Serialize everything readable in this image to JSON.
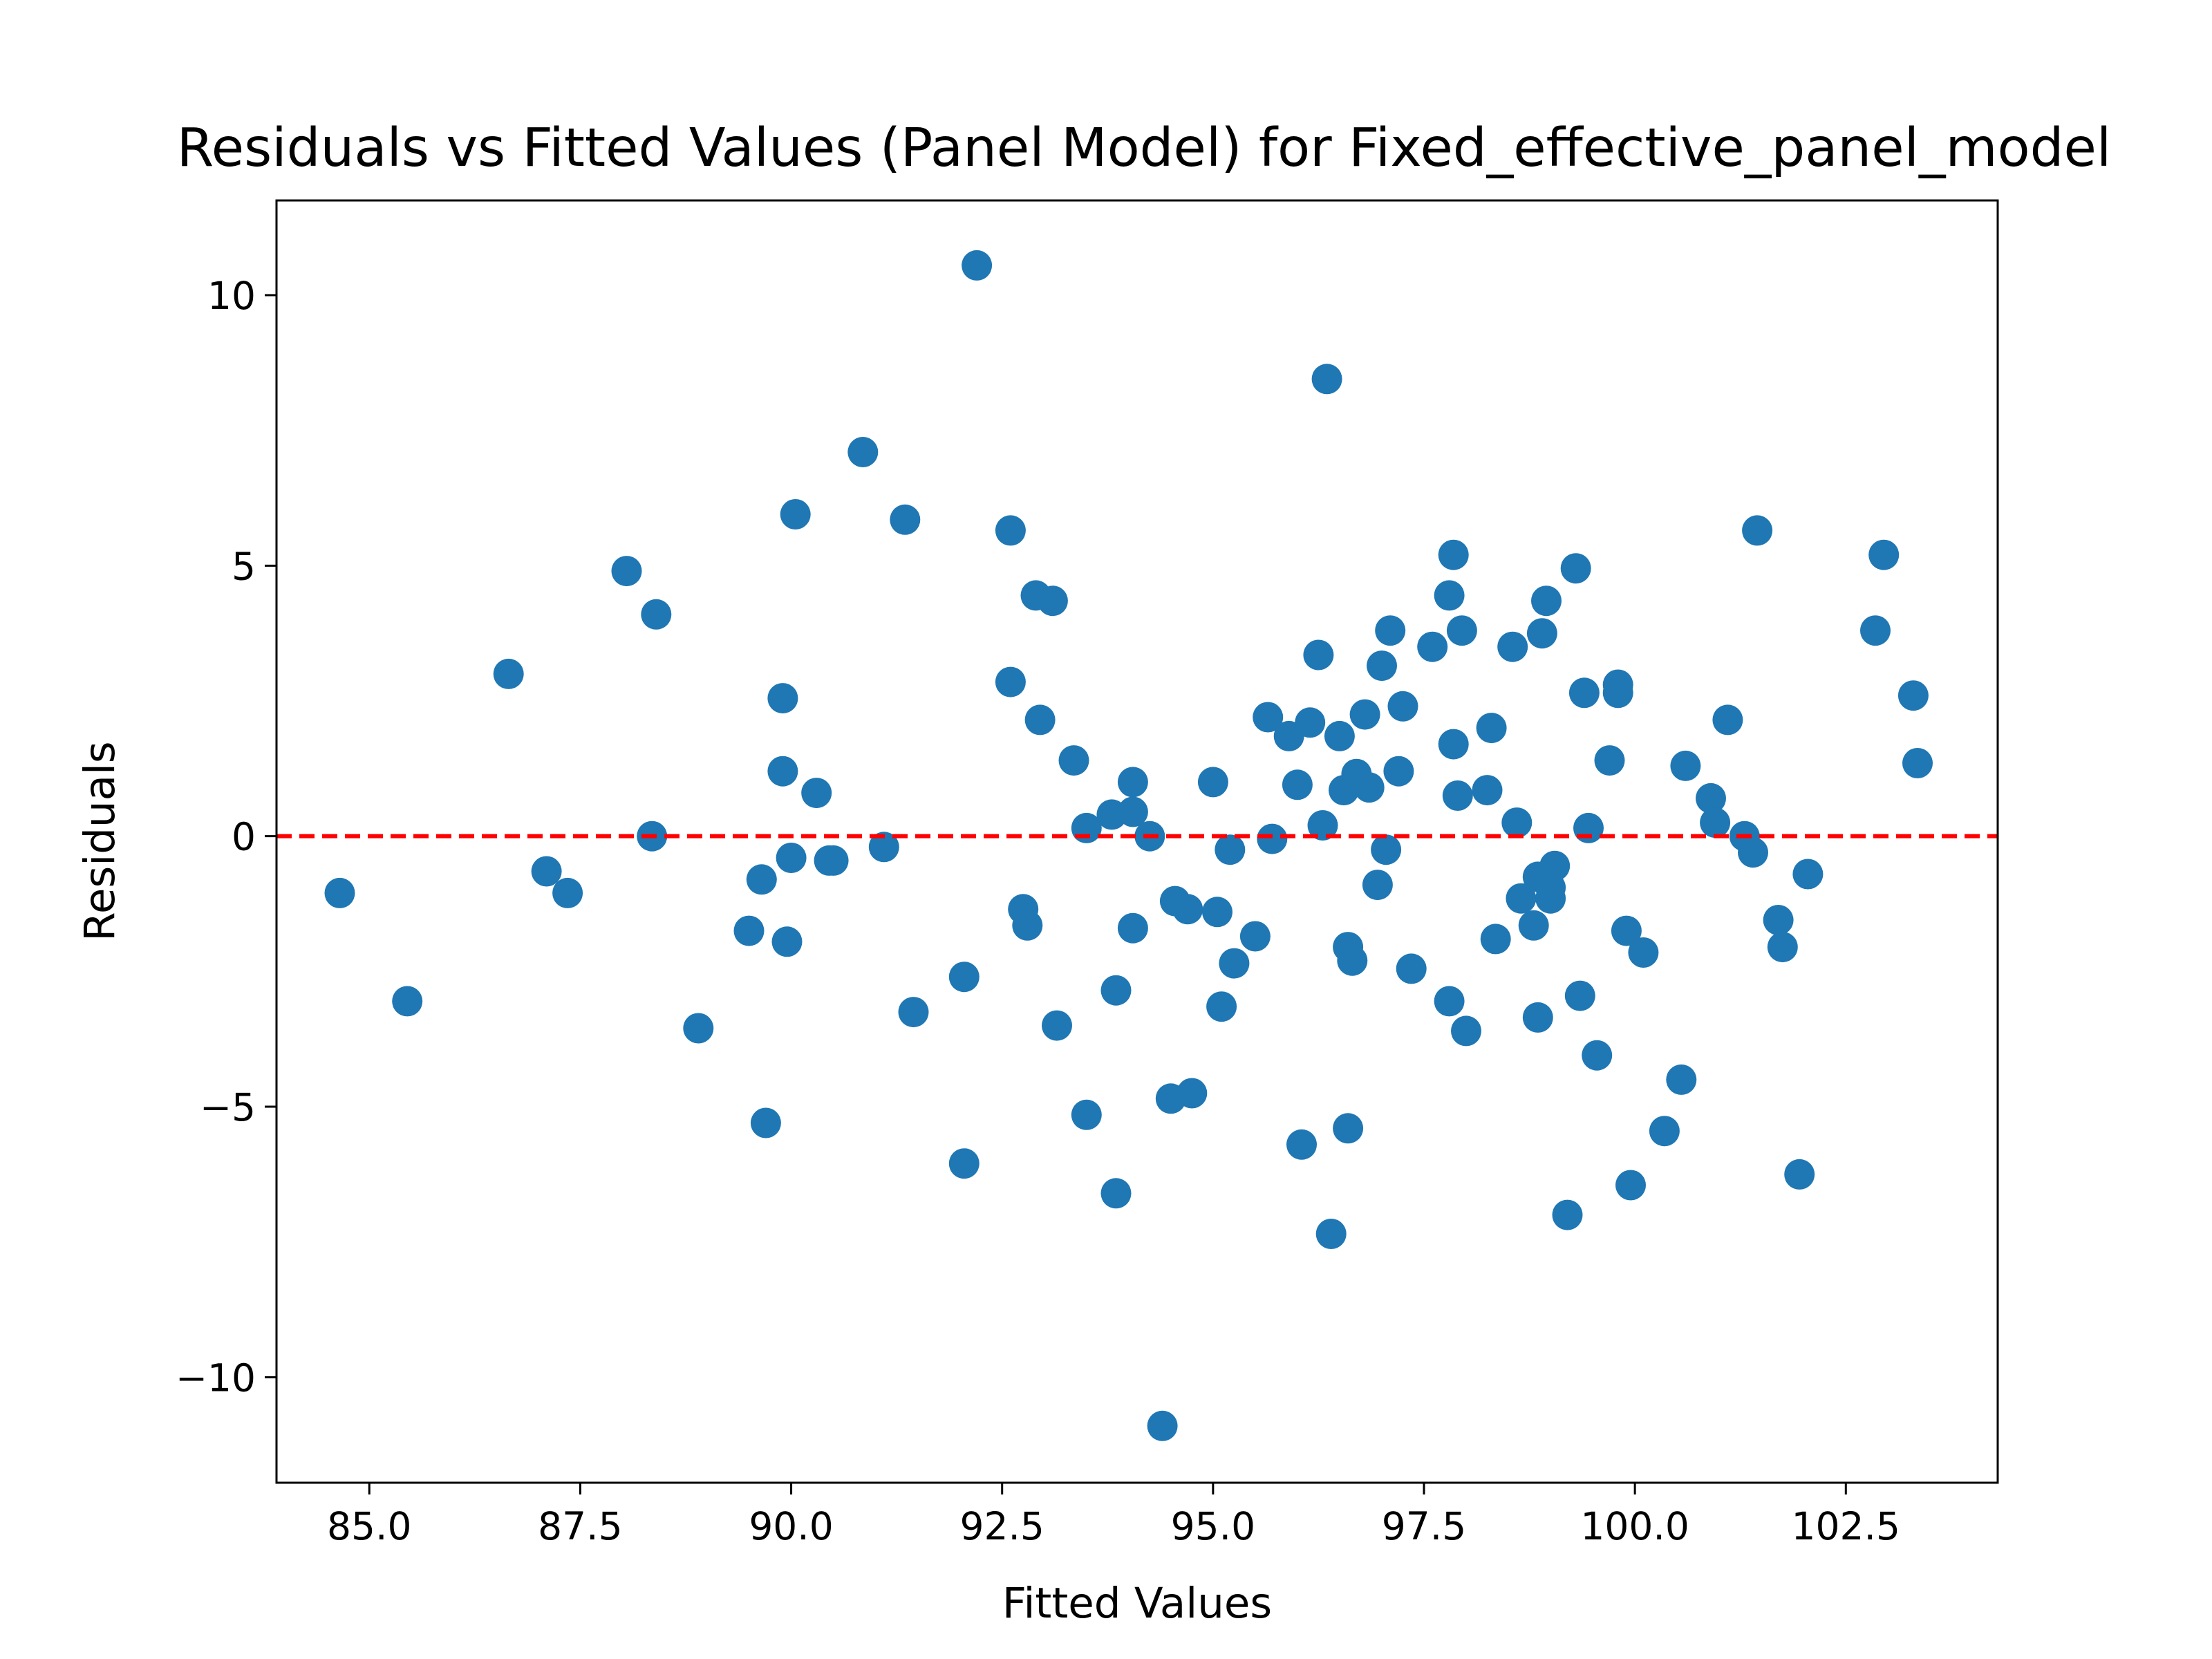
{
  "chart_data": {
    "type": "scatter",
    "title": "Residuals vs Fitted Values (Panel Model) for Fixed_effective_panel_model",
    "xlabel": "Fitted Values",
    "ylabel": "Residuals",
    "xlim": [
      83.9,
      104.3
    ],
    "ylim": [
      -11.95,
      11.75
    ],
    "x_ticks": [
      85.0,
      87.5,
      90.0,
      92.5,
      95.0,
      97.5,
      100.0,
      102.5
    ],
    "x_tick_labels": [
      "85.0",
      "87.5",
      "90.0",
      "92.5",
      "95.0",
      "97.5",
      "100.0",
      "102.5"
    ],
    "y_ticks": [
      -10,
      -5,
      0,
      5,
      10
    ],
    "y_tick_labels": [
      "−10",
      "−5",
      "0",
      "5",
      "10"
    ],
    "grid": false,
    "reference_line": {
      "y": 0,
      "color": "#ff0000",
      "style": "dashed"
    },
    "marker_color": "#1f77b4",
    "series": [
      {
        "x": [
          84.65,
          85.45,
          86.65,
          87.1,
          87.35,
          88.05,
          88.35,
          88.4,
          88.9,
          89.5,
          89.65,
          89.7,
          89.9,
          89.9,
          89.95,
          90.0,
          90.05,
          90.3,
          90.45,
          90.5,
          90.85,
          91.1,
          91.35,
          91.45,
          92.05,
          92.05,
          92.2,
          92.6,
          92.6,
          92.75,
          92.8,
          92.9,
          92.95,
          93.1,
          93.15,
          93.35,
          93.5,
          93.5,
          93.8,
          93.85,
          93.85,
          94.05,
          94.05,
          94.05,
          94.25,
          94.4,
          94.5,
          94.55,
          94.7,
          94.75,
          95.0,
          95.05,
          95.1,
          95.2,
          95.25,
          95.5,
          95.65,
          95.7,
          95.9,
          96.0,
          96.05,
          96.15,
          96.25,
          96.3,
          96.35,
          96.4,
          96.5,
          96.55,
          96.6,
          96.6,
          96.65,
          96.7,
          96.8,
          96.85,
          96.95,
          97.0,
          97.05,
          97.1,
          97.2,
          97.25,
          97.35,
          97.6,
          97.8,
          97.8,
          97.85,
          97.85,
          97.9,
          97.95,
          98.0,
          98.25,
          98.3,
          98.35,
          98.55,
          98.6,
          98.65,
          98.8,
          98.85,
          98.85,
          98.9,
          98.95,
          99.0,
          99.0,
          99.05,
          99.2,
          99.3,
          99.35,
          99.4,
          99.45,
          99.55,
          99.7,
          99.8,
          99.8,
          99.9,
          99.95,
          100.1,
          100.35,
          100.55,
          100.6,
          100.9,
          100.95,
          101.1,
          101.3,
          101.45,
          101.4,
          101.7,
          101.75,
          101.95,
          102.05,
          102.85,
          102.95,
          103.3,
          103.35
        ],
        "y": [
          -1.05,
          -3.05,
          3.0,
          -0.65,
          -1.05,
          4.9,
          0.0,
          4.1,
          -3.55,
          -1.75,
          -0.8,
          -5.3,
          1.2,
          2.55,
          -1.95,
          -0.4,
          5.95,
          0.8,
          -0.45,
          -0.45,
          7.1,
          -0.2,
          5.85,
          -3.25,
          -2.6,
          -6.05,
          10.55,
          5.65,
          2.85,
          -1.35,
          -1.65,
          4.45,
          2.15,
          4.35,
          -3.5,
          1.4,
          0.15,
          -5.15,
          0.4,
          -2.85,
          -6.6,
          0.45,
          1.0,
          -1.7,
          0.0,
          -10.9,
          -4.85,
          -1.2,
          -1.35,
          -4.75,
          1.0,
          -1.4,
          -3.15,
          -0.25,
          -2.35,
          -1.85,
          2.2,
          -0.05,
          1.85,
          0.95,
          -5.7,
          2.1,
          3.35,
          0.2,
          8.45,
          -7.35,
          1.85,
          0.85,
          -2.05,
          -5.4,
          -2.3,
          1.15,
          2.25,
          0.9,
          -0.9,
          3.15,
          -0.25,
          3.8,
          1.2,
          2.4,
          -2.45,
          3.5,
          4.45,
          -3.05,
          5.2,
          1.7,
          0.75,
          3.8,
          -3.6,
          0.85,
          2.0,
          -1.9,
          3.5,
          0.25,
          -1.15,
          -1.65,
          -3.35,
          -0.75,
          3.75,
          4.35,
          -0.95,
          -1.15,
          -0.55,
          -7.0,
          4.95,
          -2.95,
          2.65,
          0.15,
          -4.05,
          1.4,
          2.8,
          2.65,
          -1.75,
          -6.45,
          -2.15,
          -5.45,
          -4.5,
          1.3,
          0.7,
          0.25,
          2.15,
          0.0,
          5.65,
          -0.3,
          -1.55,
          -2.05,
          -6.25,
          -0.7,
          3.8,
          5.2,
          2.6,
          1.35
        ]
      }
    ]
  }
}
